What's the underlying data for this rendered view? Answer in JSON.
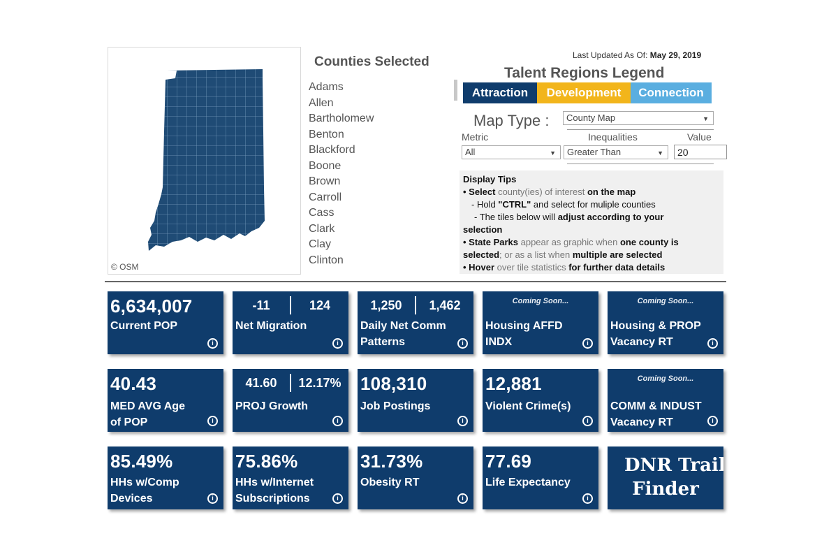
{
  "map": {
    "attribution": "© OSM",
    "fill_color": "#1f4b75"
  },
  "counties": {
    "title": "Counties Selected",
    "items": [
      "Adams",
      "Allen",
      "Bartholomew",
      "Benton",
      "Blackford",
      "Boone",
      "Brown",
      "Carroll",
      "Cass",
      "Clark",
      "Clay",
      "Clinton"
    ]
  },
  "header": {
    "last_updated_label": "Last Updated As Of:",
    "last_updated_date": "May 29, 2019"
  },
  "legend": {
    "title": "Talent Regions Legend",
    "items": [
      {
        "label": "Attraction",
        "color": "#0f3c6c"
      },
      {
        "label": "Development",
        "color": "#f2b51b"
      },
      {
        "label": "Connection",
        "color": "#5aaee0"
      }
    ]
  },
  "controls": {
    "map_type_label": "Map Type :",
    "map_type_value": "County Map",
    "metric_label": "Metric",
    "metric_value": "All",
    "inequalities_label": "Inequalities",
    "inequalities_value": "Greater Than",
    "value_label": "Value",
    "value_value": "20"
  },
  "tips": {
    "title": "Display Tips",
    "l1a": "• Select ",
    "l1b": "county(ies) of interest ",
    "l1c": "on the map",
    "l2a": "- Hold ",
    "l2b": "\"CTRL\"",
    "l2c": " and select for muliple counties",
    "l3a": "- The tiles below will ",
    "l3b": "adjust according to your",
    "l4": "selection",
    "l5a": "• State Parks ",
    "l5b": "appear as graphic when ",
    "l5c": "one county is",
    "l6a": "selected",
    "l6b": "; or as a list ",
    "l6c": "when ",
    "l6d": "multiple are selected",
    "l7a": "• Hover ",
    "l7b": "over tile statistics ",
    "l7c": "for further data details"
  },
  "tiles": {
    "pop": {
      "value": "6,634,007",
      "label": "Current POP"
    },
    "migration": {
      "v1": "-11",
      "v2": "124",
      "label": "Net Migration"
    },
    "comm": {
      "v1": "1,250",
      "v2": "1,462",
      "label1": "Daily Net Comm",
      "label2": "Patterns"
    },
    "housing_affd": {
      "soon": "Coming Soon...",
      "label1": "Housing AFFD",
      "label2": "INDX"
    },
    "housing_prop": {
      "soon": "Coming Soon...",
      "label1": "Housing & PROP",
      "label2": "Vacancy RT"
    },
    "age": {
      "value": "40.43",
      "label1": "MED AVG Age",
      "label2": "of POP"
    },
    "growth": {
      "v1": "41.60",
      "v2": "12.17%",
      "label": "PROJ Growth"
    },
    "jobs": {
      "value": "108,310",
      "label": "Job Postings"
    },
    "crime": {
      "value": "12,881",
      "label": "Violent Crime(s)"
    },
    "comm_indust": {
      "soon": "Coming Soon...",
      "label1": "COMM & INDUST",
      "label2": "Vacancy RT"
    },
    "devices": {
      "value": "85.49%",
      "label1": "HHs w/Comp",
      "label2": "Devices"
    },
    "internet": {
      "value": "75.86%",
      "label1": "HHs w/Internet",
      "label2": "Subscriptions"
    },
    "obesity": {
      "value": "31.73%",
      "label": "Obesity RT"
    },
    "life": {
      "value": "77.69",
      "label": "Life Expectancy"
    },
    "dnr": {
      "line1": "DNR Trail",
      "line2": "Finder"
    }
  },
  "info_glyph": "i"
}
